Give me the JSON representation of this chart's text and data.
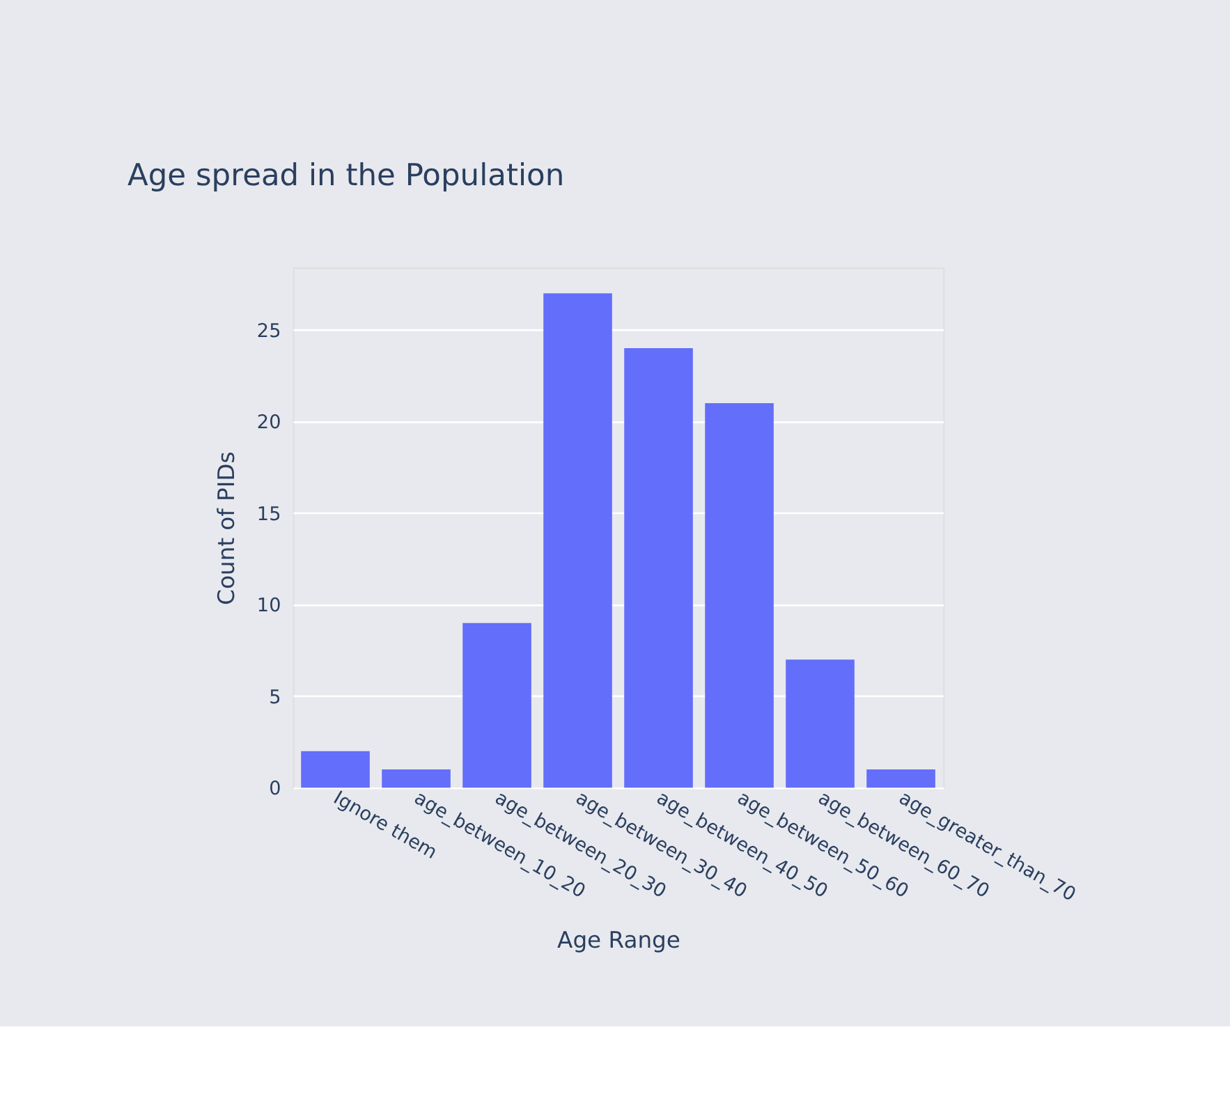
{
  "chart_data": {
    "type": "bar",
    "title": "Age spread in the Population",
    "xlabel": "Age Range",
    "ylabel": "Count of PIDs",
    "categories": [
      "Ignore them",
      "age_between_10_20",
      "age_between_20_30",
      "age_between_30_40",
      "age_between_40_50",
      "age_between_50_60",
      "age_between_60_70",
      "age_greater_than_70"
    ],
    "values": [
      2,
      1,
      9,
      27,
      24,
      21,
      7,
      1
    ],
    "color": "#636efa",
    "ylim": [
      0,
      28.4
    ],
    "yticks": [
      0,
      5,
      10,
      15,
      20,
      25
    ],
    "grid": "y"
  }
}
